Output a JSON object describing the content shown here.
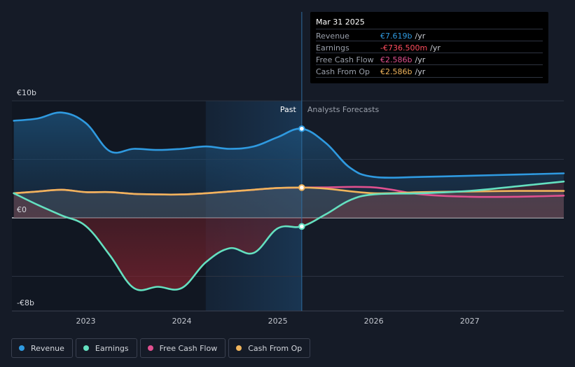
{
  "tooltip": {
    "date": "Mar 31 2025",
    "rows": [
      {
        "label": "Revenue",
        "value": "€7.619b",
        "unit": "/yr",
        "color": "#2f9ae0"
      },
      {
        "label": "Earnings",
        "value": "-€736.500m",
        "unit": "/yr",
        "color": "#ff4d5e"
      },
      {
        "label": "Free Cash Flow",
        "value": "€2.586b",
        "unit": "/yr",
        "color": "#e0508f"
      },
      {
        "label": "Cash From Op",
        "value": "€2.586b",
        "unit": "/yr",
        "color": "#f0b45c"
      }
    ]
  },
  "chart_data": {
    "type": "area",
    "y_tick_labels": [
      "€10b",
      "€0",
      "-€8b"
    ],
    "ylim": [
      -8,
      10
    ],
    "x_tick_labels": [
      "2023",
      "2024",
      "2025",
      "2026",
      "2027"
    ],
    "x_tick_positions": [
      2023,
      2024,
      2025,
      2026,
      2027
    ],
    "xlim": [
      2022.23,
      2027.98
    ],
    "past_label": "Past",
    "forecast_label": "Analysts Forecasts",
    "past_end": 2025.25,
    "grid": true,
    "legend_position": "bottom",
    "series": [
      {
        "name": "Revenue",
        "color": "#2f9ae0",
        "x": [
          2022.25,
          2022.5,
          2022.75,
          2023.0,
          2023.25,
          2023.5,
          2023.75,
          2024.0,
          2024.25,
          2024.5,
          2024.75,
          2025.0,
          2025.25,
          2025.5,
          2025.75,
          2026.0,
          2026.5,
          2027.0,
          2027.5,
          2027.98
        ],
        "y": [
          8.3,
          8.5,
          9.0,
          8.1,
          5.7,
          5.9,
          5.8,
          5.9,
          6.1,
          5.9,
          6.1,
          6.9,
          7.619,
          6.4,
          4.3,
          3.5,
          3.5,
          3.6,
          3.7,
          3.8
        ]
      },
      {
        "name": "Earnings",
        "color": "#64e0c0",
        "x": [
          2022.25,
          2022.5,
          2022.75,
          2023.0,
          2023.25,
          2023.5,
          2023.75,
          2024.0,
          2024.25,
          2024.5,
          2024.75,
          2025.0,
          2025.25,
          2025.5,
          2025.75,
          2026.0,
          2026.5,
          2027.0,
          2027.5,
          2027.98
        ],
        "y": [
          2.1,
          1.1,
          0.2,
          -0.7,
          -3.2,
          -6.0,
          -5.9,
          -6.0,
          -3.8,
          -2.6,
          -3.0,
          -0.9,
          -0.7365,
          0.3,
          1.5,
          2.0,
          2.1,
          2.3,
          2.7,
          3.1
        ]
      },
      {
        "name": "Free Cash Flow",
        "color": "#e0508f",
        "x": [
          2022.25,
          2022.5,
          2022.75,
          2023.0,
          2023.25,
          2023.5,
          2023.75,
          2024.0,
          2024.25,
          2024.5,
          2024.75,
          2025.0,
          2025.25,
          2025.5,
          2026.0,
          2026.5,
          2027.0,
          2027.5,
          2027.98
        ],
        "y": [
          2.1,
          2.25,
          2.4,
          2.2,
          2.2,
          2.05,
          2.0,
          2.0,
          2.1,
          2.25,
          2.4,
          2.55,
          2.586,
          2.6,
          2.6,
          2.0,
          1.8,
          1.8,
          1.9
        ]
      },
      {
        "name": "Cash From Op",
        "color": "#f0b45c",
        "x": [
          2022.25,
          2022.5,
          2022.75,
          2023.0,
          2023.25,
          2023.5,
          2023.75,
          2024.0,
          2024.25,
          2024.5,
          2024.75,
          2025.0,
          2025.25,
          2025.5,
          2026.0,
          2026.5,
          2027.0,
          2027.5,
          2027.98
        ],
        "y": [
          2.1,
          2.25,
          2.4,
          2.2,
          2.2,
          2.05,
          2.0,
          2.0,
          2.1,
          2.25,
          2.4,
          2.55,
          2.586,
          2.5,
          2.1,
          2.2,
          2.25,
          2.3,
          2.3
        ]
      }
    ]
  }
}
